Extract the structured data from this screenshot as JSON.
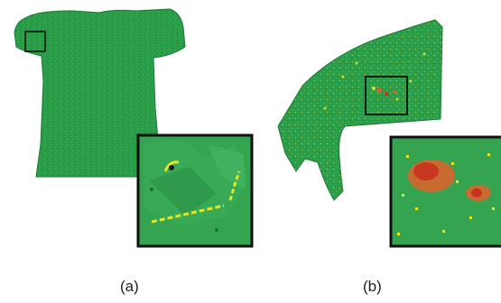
{
  "panels": [
    {
      "id": "a",
      "label": "(a)"
    },
    {
      "id": "b",
      "label": "(b)"
    }
  ],
  "colors": {
    "background": "#ffffff",
    "mesh_green": "#2a9b47",
    "mesh_dark": "#1c7a36",
    "inset_green": "#35a451",
    "highlight_yellow": "#e3e62a",
    "highlight_orange": "#e2612a",
    "highlight_red": "#c8321f",
    "frame": "#111111"
  }
}
